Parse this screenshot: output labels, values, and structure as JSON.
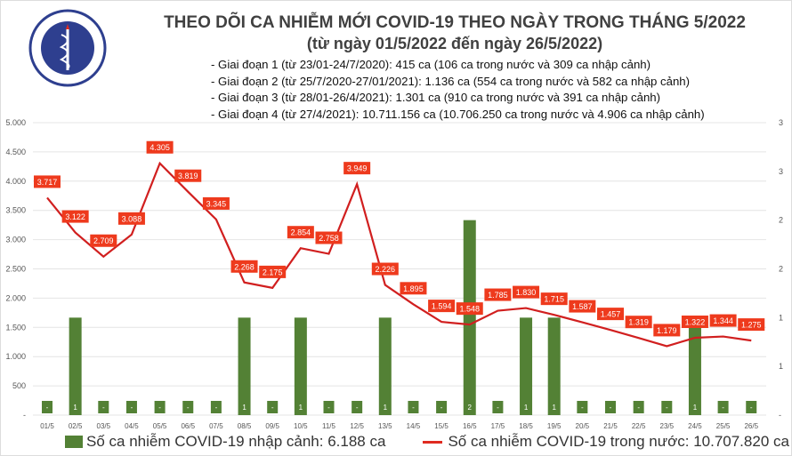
{
  "logo": {
    "text_top": "BỘ Y TẾ",
    "text_bottom": "MINISTRY OF HEALTH"
  },
  "title": "THEO DÕI CA NHIỄM MỚI COVID-19 THEO NGÀY TRONG THÁNG 5/2022",
  "subtitle": "(từ ngày 01/5/2022 đến ngày 26/5/2022)",
  "notes": [
    "- Giai đoạn 1 (từ 23/01-24/7/2020): 415 ca (106 ca trong nước và 309 ca nhập cảnh)",
    "- Giai đoạn 2 (từ 25/7/2020-27/01/2021): 1.136 ca (554 ca trong nước và 582 ca nhập cảnh)",
    "- Giai đoạn 3 (từ 28/01-26/4/2021): 1.301 ca (910 ca trong nước và 391 ca nhập cảnh)",
    "- Giai đoạn 4 (từ 27/4/2021): 10.711.156 ca (10.706.250 ca trong nước và 4.906 ca nhập cảnh)"
  ],
  "chart_data": {
    "type": "bar+line",
    "categories": [
      "01/5",
      "02/5",
      "03/5",
      "04/5",
      "05/5",
      "06/5",
      "07/5",
      "08/5",
      "09/5",
      "10/5",
      "11/5",
      "12/5",
      "13/5",
      "14/5",
      "15/5",
      "16/5",
      "17/5",
      "18/5",
      "19/5",
      "20/5",
      "21/5",
      "22/5",
      "23/5",
      "24/5",
      "25/5",
      "26/5"
    ],
    "series": [
      {
        "name": "Số ca nhiễm COVID-19 nhập cảnh: 6.188 ca",
        "type": "bar",
        "axis": "right",
        "color": "#538135",
        "values": [
          0,
          1,
          0,
          0,
          0,
          0,
          0,
          1,
          0,
          1,
          0,
          0,
          1,
          0,
          0,
          2,
          0,
          1,
          1,
          0,
          0,
          0,
          0,
          1,
          0,
          0
        ]
      },
      {
        "name": "Số ca nhiễm COVID-19 trong nước: 10.707.820 ca",
        "type": "line",
        "axis": "left",
        "color": "#e02b20",
        "values": [
          3717,
          3122,
          2709,
          3088,
          4305,
          3819,
          3345,
          2268,
          2175,
          2854,
          2758,
          3949,
          2226,
          1895,
          1594,
          1548,
          1785,
          1830,
          1715,
          1587,
          1457,
          1319,
          1179,
          1322,
          1344,
          1275
        ]
      }
    ],
    "left_axis": {
      "ylim": [
        0,
        5000
      ],
      "ticks": [
        "-",
        "500",
        "1.000",
        "1.500",
        "2.000",
        "2.500",
        "3.000",
        "3.500",
        "4.000",
        "4.500",
        "5.000"
      ]
    },
    "right_axis": {
      "ylim": [
        0,
        3
      ],
      "ticks": [
        "-",
        "1",
        "1",
        "2",
        "2",
        "3",
        "3"
      ]
    },
    "grid": true,
    "legend": "bottom"
  }
}
